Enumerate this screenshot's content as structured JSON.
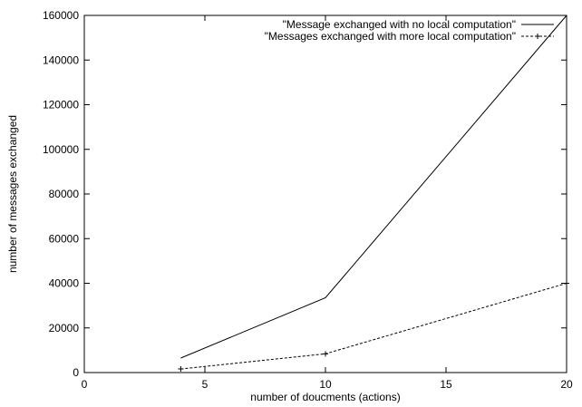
{
  "chart_data": {
    "type": "line",
    "title": "",
    "xlabel": "number of doucments (actions)",
    "ylabel": "number of messages exchanged",
    "xlim": [
      0,
      20
    ],
    "ylim": [
      0,
      160000
    ],
    "xticks": [
      0,
      5,
      10,
      15,
      20
    ],
    "yticks": [
      0,
      20000,
      40000,
      60000,
      80000,
      100000,
      120000,
      140000,
      160000
    ],
    "grid": false,
    "legend_position": "top-right",
    "series": [
      {
        "name": "\"Message exchanged with no local computation\"",
        "style": "solid",
        "marker": "none",
        "x": [
          4,
          10,
          20
        ],
        "y": [
          6500,
          33500,
          160000
        ]
      },
      {
        "name": "\"Messages exchanged with more local computation\"",
        "style": "dashed",
        "marker": "plus",
        "x": [
          4,
          10,
          20
        ],
        "y": [
          1600,
          8400,
          40000
        ]
      }
    ]
  }
}
